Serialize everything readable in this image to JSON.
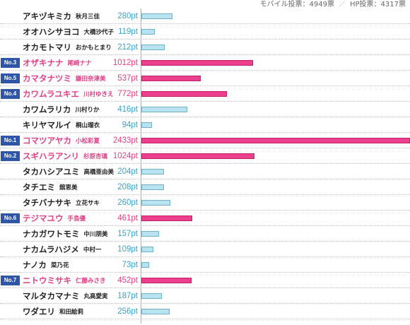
{
  "header": {
    "mobile_votes": "モバイル投票：4949票",
    "hp_votes": "HP投票：4317票"
  },
  "colors": {
    "highlight": "#e03e86",
    "normal_points": "#3aa3c6",
    "bar_normal": "#b9e3ee",
    "bar_ranked": "#ec3f8d",
    "badge": "#2e55a8"
  },
  "max_points": 2433,
  "rows": [
    {
      "kana": "アキヅキミカ",
      "kanji": "秋月三佳",
      "points": 280,
      "points_label": "280pt",
      "rank": ""
    },
    {
      "kana": "オオハシサヨコ",
      "kanji": "大橋沙代子",
      "points": 119,
      "points_label": "119pt",
      "rank": ""
    },
    {
      "kana": "オカモトマリ",
      "kanji": "おかもとまり",
      "points": 212,
      "points_label": "212pt",
      "rank": ""
    },
    {
      "kana": "オザキナナ",
      "kanji": "尾崎ナナ",
      "points": 1012,
      "points_label": "1012pt",
      "rank": "No.3"
    },
    {
      "kana": "カマタナツミ",
      "kanji": "鎌田奈津美",
      "points": 537,
      "points_label": "537pt",
      "rank": "No.5"
    },
    {
      "kana": "カワムラユキエ",
      "kanji": "川村ゆきえ",
      "points": 772,
      "points_label": "772pt",
      "rank": "No.4"
    },
    {
      "kana": "カワムラリカ",
      "kanji": "川村りか",
      "points": 416,
      "points_label": "416pt",
      "rank": ""
    },
    {
      "kana": "キリヤマルイ",
      "kanji": "桐山瑠衣",
      "points": 94,
      "points_label": "94pt",
      "rank": ""
    },
    {
      "kana": "コマツアヤカ",
      "kanji": "小松彩夏",
      "points": 2433,
      "points_label": "2433pt",
      "rank": "No.1"
    },
    {
      "kana": "スギハラアンリ",
      "kanji": "杉原杏璃",
      "points": 1024,
      "points_label": "1024pt",
      "rank": "No.2"
    },
    {
      "kana": "タカハシアユミ",
      "kanji": "高橋亜由美",
      "points": 204,
      "points_label": "204pt",
      "rank": ""
    },
    {
      "kana": "タチエミ",
      "kanji": "舘恵美",
      "points": 208,
      "points_label": "208pt",
      "rank": ""
    },
    {
      "kana": "タチバナサキ",
      "kanji": "立花サキ",
      "points": 260,
      "points_label": "260pt",
      "rank": ""
    },
    {
      "kana": "テジマユウ",
      "kanji": "手島優",
      "points": 461,
      "points_label": "461pt",
      "rank": "No.6"
    },
    {
      "kana": "ナカガワトモミ",
      "kanji": "中川朋美",
      "points": 157,
      "points_label": "157pt",
      "rank": ""
    },
    {
      "kana": "ナカムラハジメ",
      "kanji": "中村一",
      "points": 109,
      "points_label": "109pt",
      "rank": ""
    },
    {
      "kana": "ナノカ",
      "kanji": "菜乃花",
      "points": 73,
      "points_label": "73pt",
      "rank": ""
    },
    {
      "kana": "ニトウミサキ",
      "kanji": "仁藤みさき",
      "points": 452,
      "points_label": "452pt",
      "rank": "No.7"
    },
    {
      "kana": "マルタカマナミ",
      "kanji": "丸高愛実",
      "points": 187,
      "points_label": "187pt",
      "rank": ""
    },
    {
      "kana": "ワダエリ",
      "kanji": "和田絵莉",
      "points": 256,
      "points_label": "256pt",
      "rank": ""
    }
  ]
}
